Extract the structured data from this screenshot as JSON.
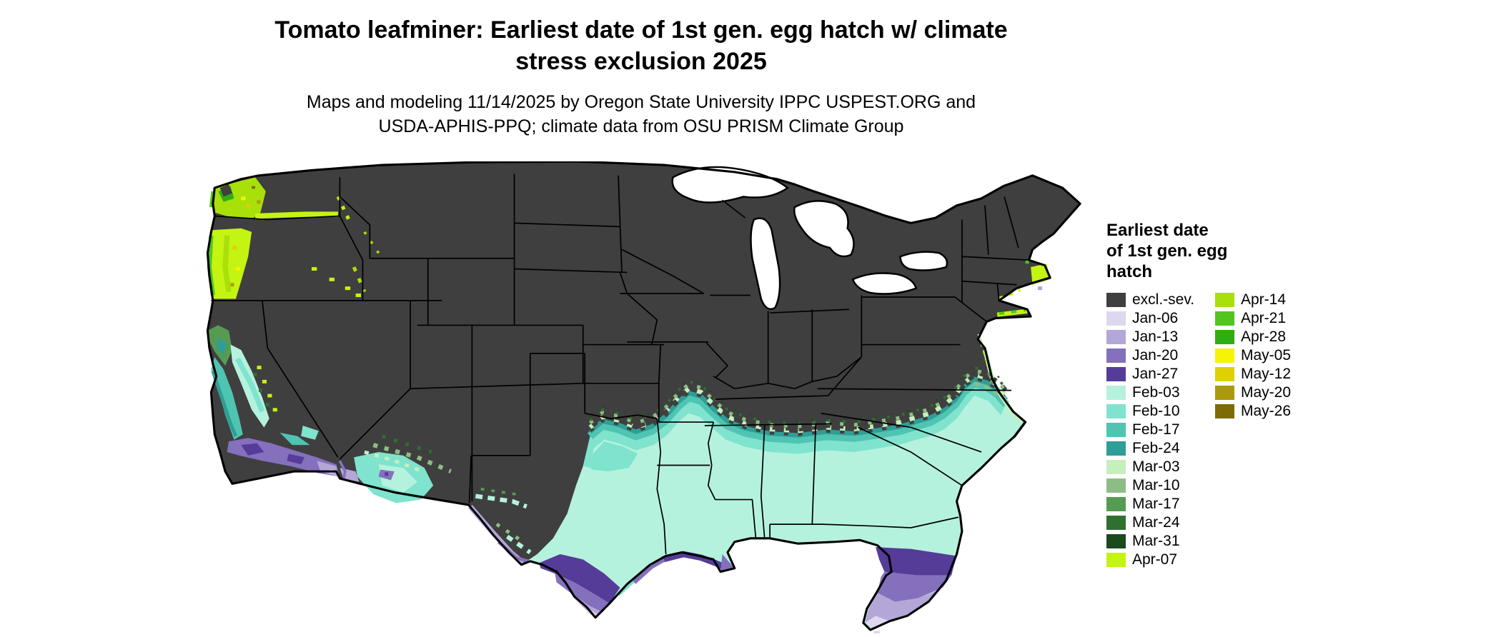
{
  "header": {
    "title_line1": "Tomato leafminer: Earliest date of 1st gen. egg hatch w/ climate",
    "title_line2": "stress exclusion 2025",
    "subtitle_line1": "Maps and modeling 11/14/2025 by Oregon State University IPPC USPEST.ORG and",
    "subtitle_line2": "USDA-APHIS-PPQ; climate data from OSU PRISM Climate Group"
  },
  "legend": {
    "title_lines": [
      "Earliest date",
      "of 1st gen. egg",
      "hatch"
    ],
    "column1": [
      {
        "label": "excl.-sev.",
        "key": "excl_sev"
      },
      {
        "label": "Jan-06",
        "key": "jan06"
      },
      {
        "label": "Jan-13",
        "key": "jan13"
      },
      {
        "label": "Jan-20",
        "key": "jan20"
      },
      {
        "label": "Jan-27",
        "key": "jan27"
      },
      {
        "label": "Feb-03",
        "key": "feb03"
      },
      {
        "label": "Feb-10",
        "key": "feb10"
      },
      {
        "label": "Feb-17",
        "key": "feb17"
      },
      {
        "label": "Feb-24",
        "key": "feb24"
      },
      {
        "label": "Mar-03",
        "key": "mar03"
      },
      {
        "label": "Mar-10",
        "key": "mar10"
      },
      {
        "label": "Mar-17",
        "key": "mar17"
      },
      {
        "label": "Mar-24",
        "key": "mar24"
      },
      {
        "label": "Mar-31",
        "key": "mar31"
      },
      {
        "label": "Apr-07",
        "key": "apr07"
      }
    ],
    "column2": [
      {
        "label": "Apr-14",
        "key": "apr14"
      },
      {
        "label": "Apr-21",
        "key": "apr21"
      },
      {
        "label": "Apr-28",
        "key": "apr28"
      },
      {
        "label": "May-05",
        "key": "may05"
      },
      {
        "label": "May-12",
        "key": "may12"
      },
      {
        "label": "May-20",
        "key": "may20"
      },
      {
        "label": "May-26",
        "key": "may26"
      }
    ]
  },
  "palette": {
    "excl_sev": "#3f3f3f",
    "jan06": "#ded8ee",
    "jan13": "#b4a6d7",
    "jan20": "#8470bd",
    "jan27": "#553c98",
    "feb03": "#b5f2de",
    "feb10": "#7fe3cd",
    "feb17": "#4fc4b2",
    "feb24": "#2f9e96",
    "mar03": "#c6efbc",
    "mar10": "#8cbd85",
    "mar17": "#569b52",
    "mar24": "#2f7030",
    "mar31": "#1b4a1e",
    "apr07": "#c4f411",
    "apr14": "#a8e00a",
    "apr21": "#52c61e",
    "apr28": "#2fae12",
    "may05": "#f6f304",
    "may12": "#dfd005",
    "may20": "#ab9a0e",
    "may26": "#7d6b06",
    "water": "#ffffff",
    "border": "#000000"
  },
  "map": {
    "description": "Contiguous United States choropleth of earliest first-generation egg hatch date for tomato leafminer, 2025",
    "base_region_label": "excl.-sev."
  }
}
